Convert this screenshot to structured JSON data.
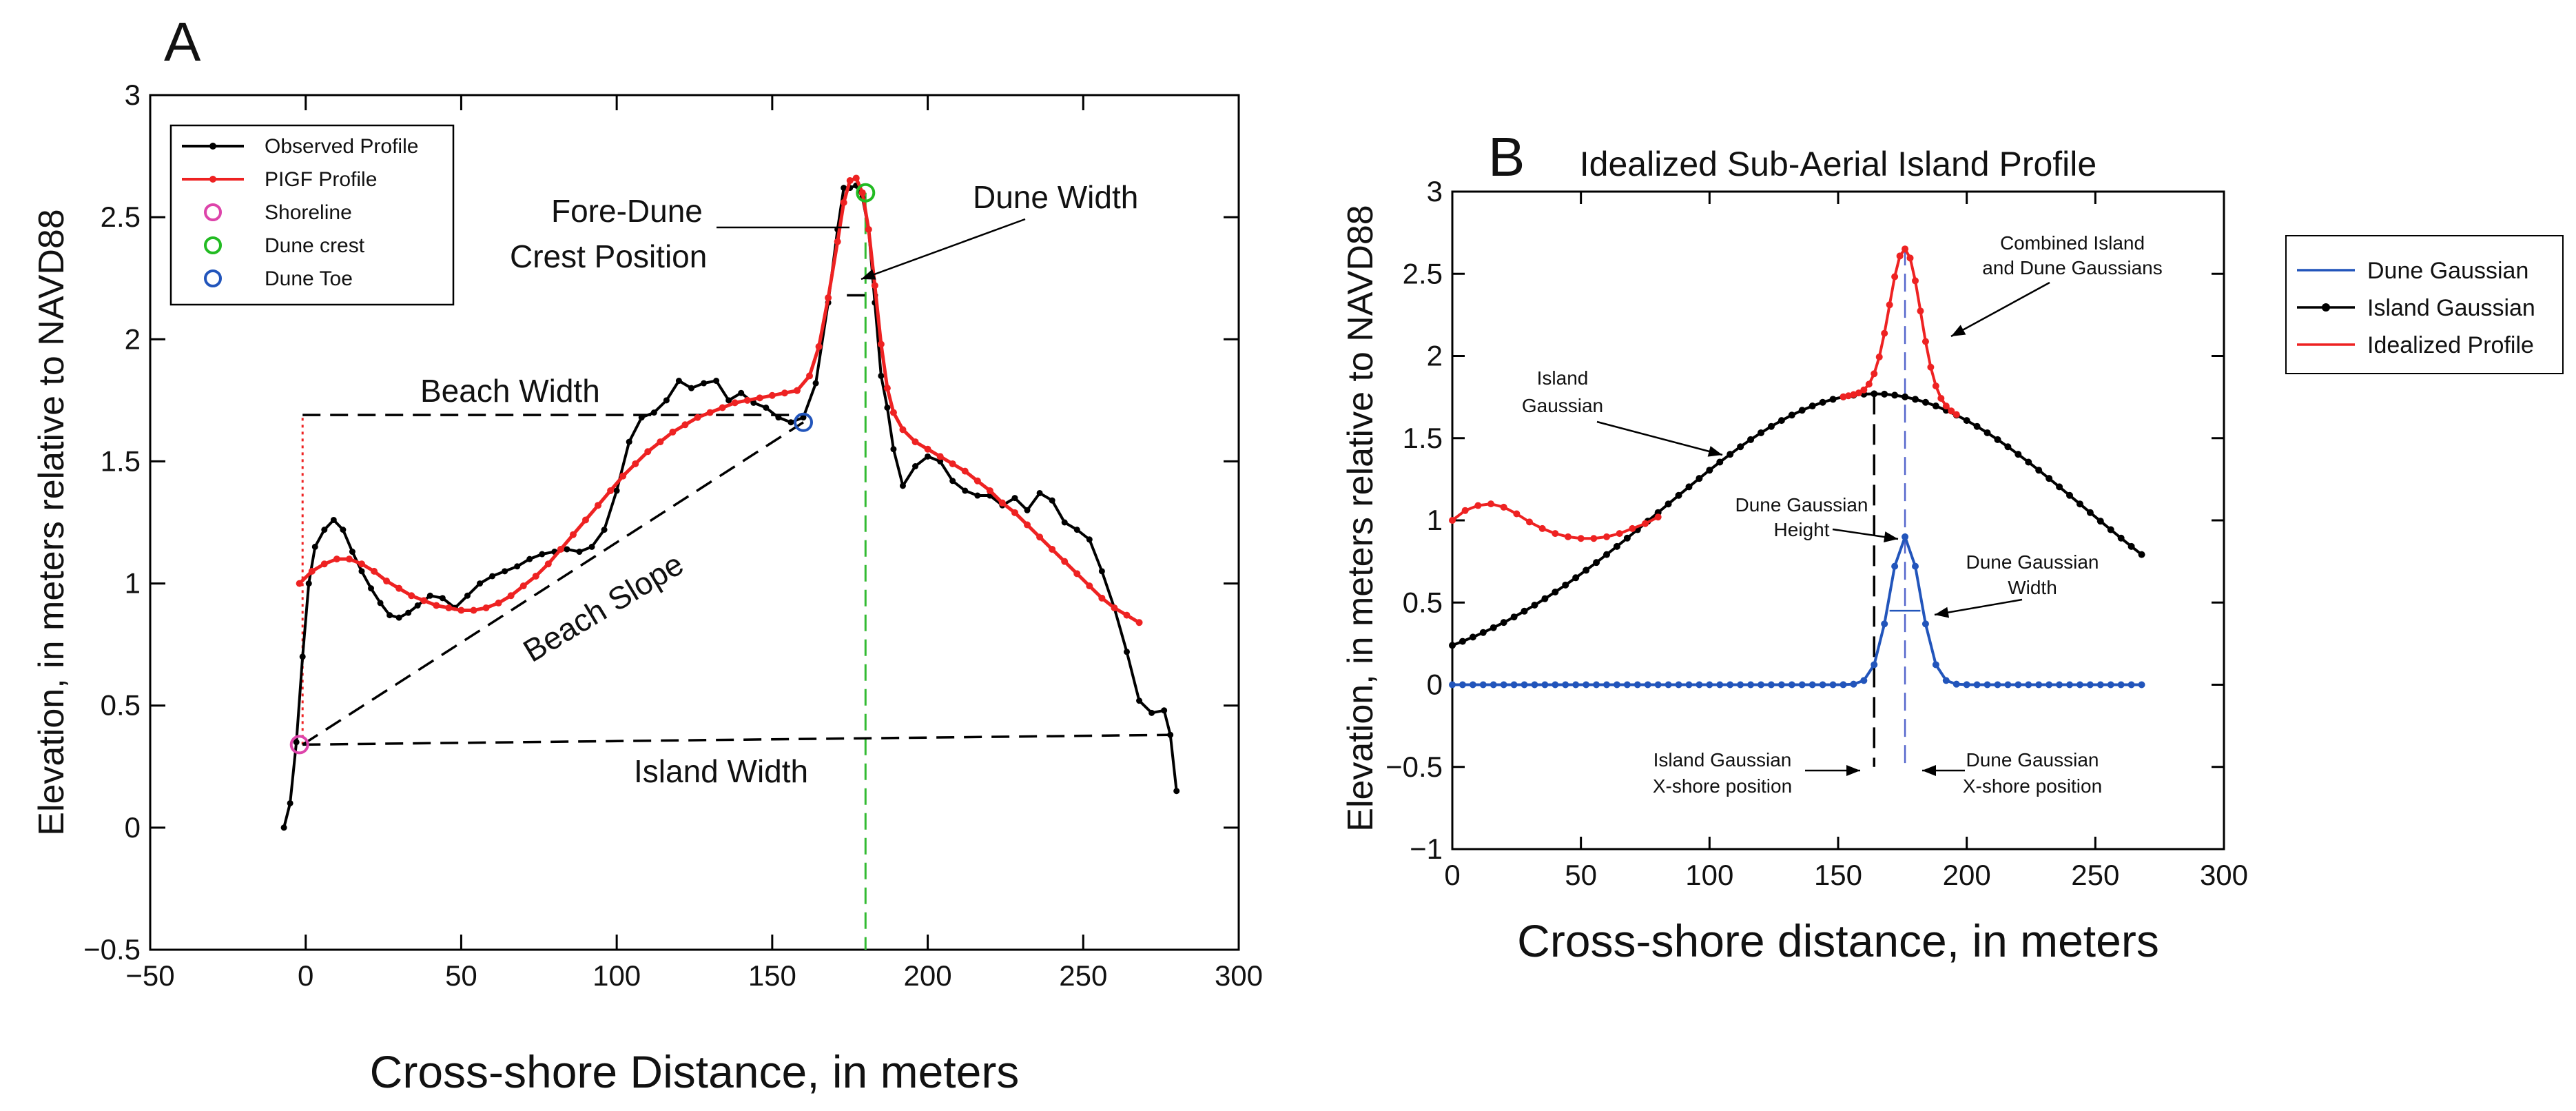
{
  "chart_data": [
    {
      "panel": "A",
      "type": "line",
      "title": "",
      "xlabel": "Cross-shore Distance, in meters",
      "ylabel": "Elevation, in meters relative to NAVD88",
      "xlim": [
        -50,
        300
      ],
      "ylim": [
        -0.5,
        3
      ],
      "xticks": [
        -50,
        0,
        50,
        100,
        150,
        200,
        250,
        300
      ],
      "yticks": [
        -0.5,
        0,
        0.5,
        1,
        1.5,
        2,
        2.5,
        3
      ],
      "xtick_labels": [
        "−50",
        "0",
        "50",
        "100",
        "150",
        "200",
        "250",
        "300"
      ],
      "ytick_labels": [
        "−0.5",
        "0",
        "0.5",
        "1",
        "1.5",
        "2",
        "2.5",
        "3"
      ],
      "legend": [
        "Observed Profile",
        "PIGF Profile",
        "Shoreline",
        "Dune crest",
        "Dune Toe"
      ],
      "legend_position": "top-left",
      "series": [
        {
          "name": "Observed Profile",
          "color": "#000000",
          "x": [
            -7,
            -5,
            -3,
            -1,
            1,
            3,
            6,
            9,
            12,
            15,
            18,
            21,
            24,
            27,
            30,
            33,
            36,
            40,
            44,
            48,
            52,
            56,
            60,
            64,
            68,
            72,
            76,
            80,
            84,
            88,
            92,
            96,
            100,
            104,
            108,
            112,
            116,
            120,
            124,
            128,
            132,
            136,
            140,
            144,
            148,
            152,
            156,
            160,
            164,
            168,
            171,
            173,
            175,
            177,
            179,
            181,
            183,
            185,
            187,
            189,
            192,
            196,
            200,
            204,
            208,
            212,
            216,
            220,
            224,
            228,
            232,
            236,
            240,
            244,
            248,
            252,
            256,
            260,
            264,
            268,
            272,
            276,
            278,
            280
          ],
          "y": [
            0.0,
            0.1,
            0.35,
            0.7,
            1.0,
            1.15,
            1.22,
            1.26,
            1.22,
            1.13,
            1.05,
            0.98,
            0.92,
            0.87,
            0.86,
            0.88,
            0.91,
            0.95,
            0.94,
            0.9,
            0.95,
            1.0,
            1.03,
            1.05,
            1.07,
            1.1,
            1.12,
            1.13,
            1.14,
            1.13,
            1.15,
            1.22,
            1.38,
            1.58,
            1.68,
            1.7,
            1.75,
            1.83,
            1.8,
            1.82,
            1.83,
            1.75,
            1.78,
            1.74,
            1.72,
            1.68,
            1.66,
            1.68,
            1.82,
            2.15,
            2.45,
            2.62,
            2.62,
            2.63,
            2.58,
            2.45,
            2.15,
            1.85,
            1.72,
            1.55,
            1.4,
            1.48,
            1.52,
            1.5,
            1.42,
            1.38,
            1.36,
            1.36,
            1.32,
            1.35,
            1.3,
            1.37,
            1.34,
            1.25,
            1.22,
            1.18,
            1.05,
            0.9,
            0.72,
            0.52,
            0.47,
            0.48,
            0.38,
            0.15
          ]
        },
        {
          "name": "PIGF Profile",
          "color": "#ee2222",
          "x": [
            -2,
            2,
            6,
            10,
            14,
            18,
            22,
            26,
            30,
            34,
            38,
            42,
            46,
            50,
            54,
            58,
            62,
            66,
            70,
            74,
            78,
            82,
            86,
            90,
            94,
            98,
            102,
            106,
            110,
            114,
            118,
            122,
            126,
            130,
            134,
            138,
            142,
            146,
            150,
            154,
            158,
            162,
            165,
            168,
            171,
            173,
            175,
            177,
            179,
            181,
            183,
            185,
            187,
            189,
            192,
            196,
            200,
            204,
            208,
            212,
            216,
            220,
            224,
            228,
            232,
            236,
            240,
            244,
            248,
            252,
            256,
            260,
            264,
            268
          ],
          "y": [
            1.0,
            1.05,
            1.08,
            1.1,
            1.1,
            1.08,
            1.05,
            1.01,
            0.98,
            0.95,
            0.93,
            0.91,
            0.9,
            0.89,
            0.89,
            0.9,
            0.92,
            0.95,
            0.99,
            1.03,
            1.08,
            1.14,
            1.2,
            1.26,
            1.32,
            1.38,
            1.44,
            1.49,
            1.54,
            1.58,
            1.62,
            1.65,
            1.68,
            1.7,
            1.72,
            1.74,
            1.75,
            1.76,
            1.77,
            1.78,
            1.79,
            1.85,
            1.97,
            2.17,
            2.4,
            2.56,
            2.65,
            2.66,
            2.6,
            2.45,
            2.22,
            1.98,
            1.8,
            1.7,
            1.63,
            1.58,
            1.55,
            1.52,
            1.49,
            1.46,
            1.42,
            1.38,
            1.33,
            1.29,
            1.24,
            1.19,
            1.14,
            1.09,
            1.04,
            0.99,
            0.94,
            0.9,
            0.87,
            0.84
          ]
        }
      ],
      "markers": [
        {
          "name": "Shoreline",
          "color": "#dd44aa",
          "x": -2,
          "y": 0.34
        },
        {
          "name": "Dune crest",
          "color": "#22bb22",
          "x": 180,
          "y": 2.6
        },
        {
          "name": "Dune Toe",
          "color": "#2255bb",
          "x": 160,
          "y": 1.66
        }
      ],
      "annotations": [
        "Fore-Dune",
        "Crest Position",
        "Dune Width",
        "Beach Width",
        "Beach Slope",
        "Island Width"
      ],
      "guides": {
        "beach_width": [
          [
            -1,
            1.69
          ],
          [
            160,
            1.69
          ]
        ],
        "beach_slope": [
          [
            -1,
            0.34
          ],
          [
            160,
            1.66
          ]
        ],
        "island_width": [
          [
            -1,
            0.34
          ],
          [
            278,
            0.38
          ]
        ],
        "dune_width": [
          [
            174,
            2.18
          ],
          [
            184,
            2.18
          ]
        ],
        "shoreline_vertical": [
          [
            -1,
            0.34
          ],
          [
            -1,
            1.69
          ]
        ],
        "crest_vertical_x": 180
      }
    },
    {
      "panel": "B",
      "type": "line",
      "title": "Idealized Sub-Aerial Island Profile",
      "xlabel": "Cross-shore distance, in meters",
      "ylabel": "Elevation, in meters relative to NAVD88",
      "xlim": [
        0,
        300
      ],
      "ylim": [
        -1,
        3
      ],
      "xticks": [
        0,
        50,
        100,
        150,
        200,
        250,
        300
      ],
      "yticks": [
        -1,
        -0.5,
        0,
        0.5,
        1,
        1.5,
        2,
        2.5,
        3
      ],
      "xtick_labels": [
        "0",
        "50",
        "100",
        "150",
        "200",
        "250",
        "300"
      ],
      "ytick_labels": [
        "−1",
        "−0.5",
        "0",
        "0.5",
        "1",
        "1.5",
        "2",
        "2.5",
        "3"
      ],
      "legend": [
        "Dune Gaussian",
        "Island Gaussian",
        "Idealized Profile"
      ],
      "legend_position": "outside-right",
      "series": [
        {
          "name": "Dune Gaussian",
          "color": "#2255bb",
          "function": "gaussian",
          "amplitude": 0.9,
          "center": 176,
          "sigma": 6,
          "x_range": [
            0,
            268
          ]
        },
        {
          "name": "Island Gaussian",
          "color": "#000000",
          "function": "gaussian",
          "amplitude": 1.77,
          "center": 164,
          "sigma": 82,
          "x_range": [
            0,
            268
          ]
        },
        {
          "name": "Idealized Profile",
          "color": "#ee2222",
          "function": "island + dune (red where differs)",
          "x_range": [
            0,
            268
          ],
          "nearshore_points": {
            "x": [
              0,
              5,
              10,
              15,
              20,
              25,
              30,
              35,
              40,
              45,
              50,
              55,
              60,
              65,
              70,
              75,
              80
            ],
            "y": [
              1.0,
              1.06,
              1.09,
              1.1,
              1.08,
              1.04,
              0.99,
              0.95,
              0.92,
              0.9,
              0.89,
              0.89,
              0.9,
              0.92,
              0.95,
              0.98,
              1.02
            ]
          }
        }
      ],
      "annotations": [
        "Combined Island",
        "and Dune Gaussians",
        "Island",
        "Gaussian",
        "Dune Gaussian",
        "Height",
        "Dune Gaussian",
        "Width",
        "Island Gaussian",
        "X-shore position",
        "Dune Gaussian",
        "X-shore position"
      ],
      "guides": {
        "island_center_x": 164,
        "dune_center_x": 176,
        "dune_width_y": 0.45,
        "dune_width_range": [
          170,
          182
        ]
      }
    }
  ],
  "panel_letters": {
    "a": "A",
    "b": "B"
  }
}
